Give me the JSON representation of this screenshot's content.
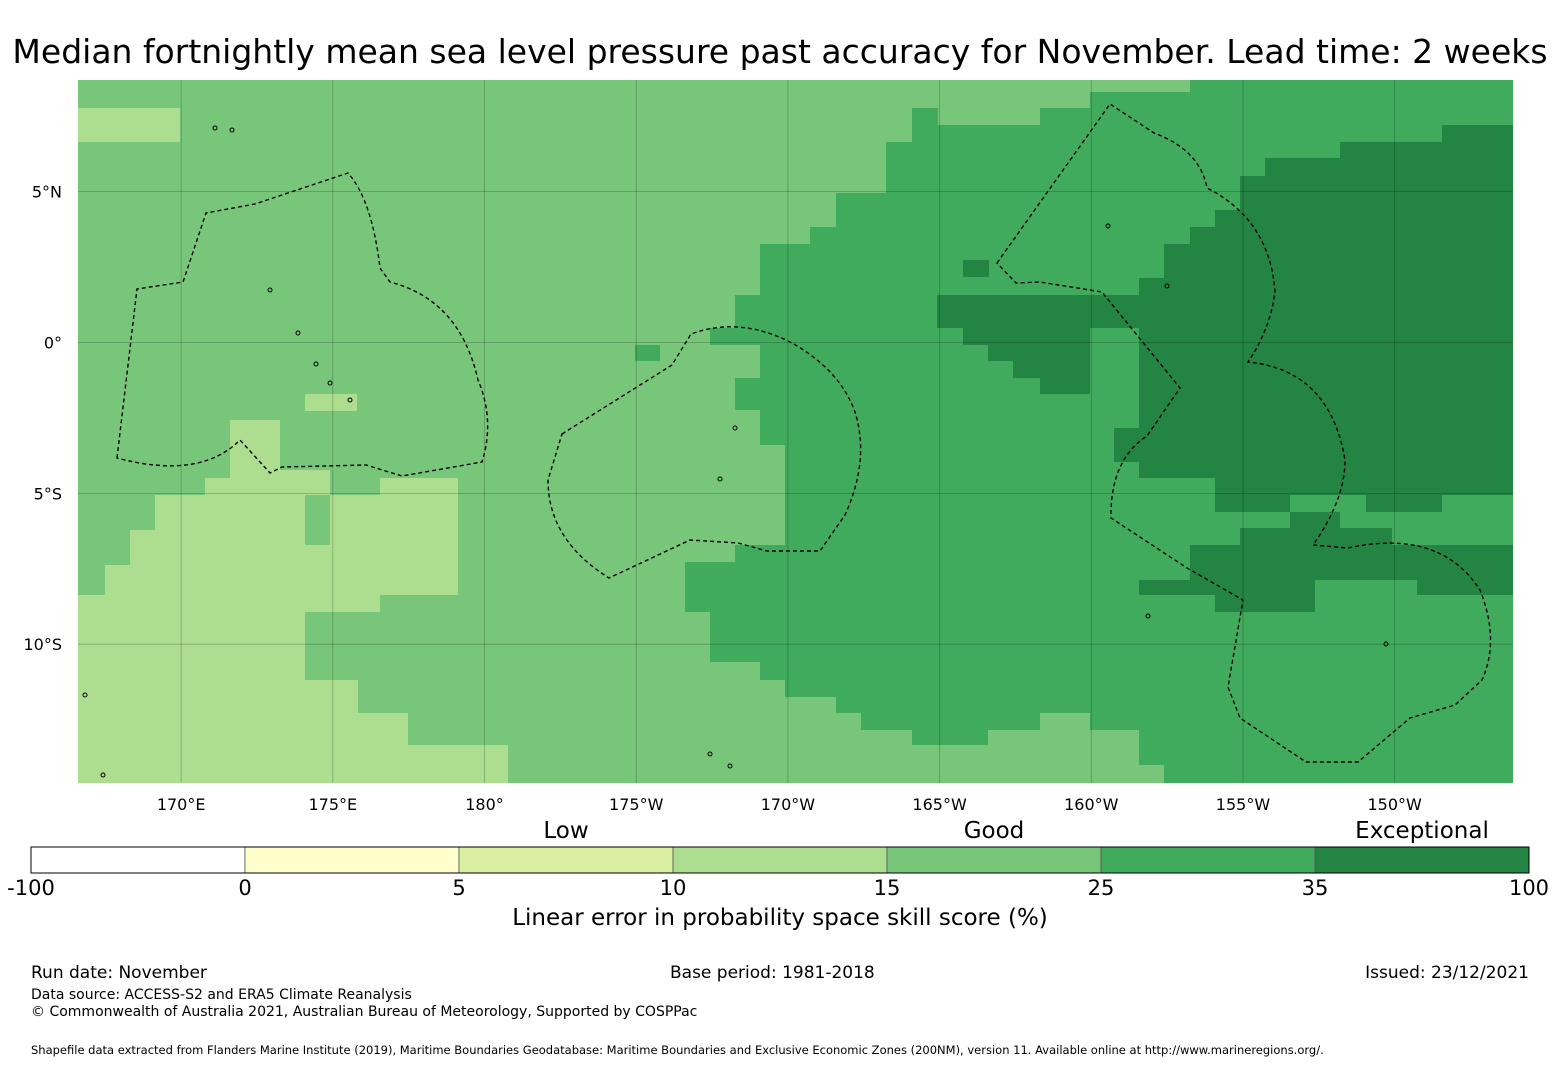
{
  "title": "Median fortnightly mean sea level pressure past accuracy for November. Lead time: 2 weeks",
  "map": {
    "lon_range": [
      166.6,
      213.9
    ],
    "lat_range": [
      -14.6,
      8.7
    ],
    "lat_ticks": [
      {
        "lat": 5,
        "label": "5°N"
      },
      {
        "lat": 0,
        "label": "0°"
      },
      {
        "lat": -5,
        "label": "5°S"
      },
      {
        "lat": -10,
        "label": "10°S"
      }
    ],
    "lon_ticks": [
      {
        "lon": 170,
        "label": "170°E"
      },
      {
        "lon": 175,
        "label": "175°E"
      },
      {
        "lon": 180,
        "label": "180°"
      },
      {
        "lon": 185,
        "label": "175°W"
      },
      {
        "lon": 190,
        "label": "170°W"
      },
      {
        "lon": 195,
        "label": "165°W"
      },
      {
        "lon": 200,
        "label": "160°W"
      },
      {
        "lon": 205,
        "label": "155°W"
      },
      {
        "lon": 210,
        "label": "150°W"
      }
    ],
    "skill_regions": [
      {
        "category": 3,
        "range_pct": "15–25",
        "color": "#78c679"
      },
      {
        "category": 2,
        "range_pct": "10–15",
        "color": "#addd8e"
      },
      {
        "category": 4,
        "range_pct": "25–35",
        "color": "#41ab5d"
      },
      {
        "category": 5,
        "range_pct": "35–100",
        "color": "#238443"
      }
    ]
  },
  "colorbar": {
    "category_labels": [
      {
        "text": "Low",
        "at": 2.5
      },
      {
        "text": "Good",
        "at": 4.5
      },
      {
        "text": "Exceptional",
        "at": 6.5
      }
    ],
    "bins": [
      {
        "from": -100,
        "to": 0,
        "color": "#ffffff"
      },
      {
        "from": 0,
        "to": 5,
        "color": "#ffffcc"
      },
      {
        "from": 5,
        "to": 10,
        "color": "#d9f0a3"
      },
      {
        "from": 10,
        "to": 15,
        "color": "#addd8e"
      },
      {
        "from": 15,
        "to": 25,
        "color": "#78c679"
      },
      {
        "from": 25,
        "to": 35,
        "color": "#41ab5d"
      },
      {
        "from": 35,
        "to": 100,
        "color": "#238443"
      }
    ],
    "ticks": [
      "-100",
      "0",
      "5",
      "10",
      "15",
      "25",
      "35",
      "100"
    ],
    "axis_title": "Linear error in probability space skill score (%)"
  },
  "footer": {
    "run_date": "Run date: November",
    "base_period": "Base period: 1981-2018",
    "issued": "Issued: 23/12/2021",
    "data_source": "Data source: ACCESS-S2 and ERA5 Climate Reanalysis",
    "copyright": "© Commonwealth of Australia 2021, Australian Bureau of Meteorology, Supported by COSPPac",
    "shapefile": "Shapefile data extracted from Flanders Marine Institute (2019), Maritime Boundaries Geodatabase: Maritime Boundaries and Exclusive Economic Zones (200NM), version 11. Available online at http://www.marineregions.org/."
  }
}
